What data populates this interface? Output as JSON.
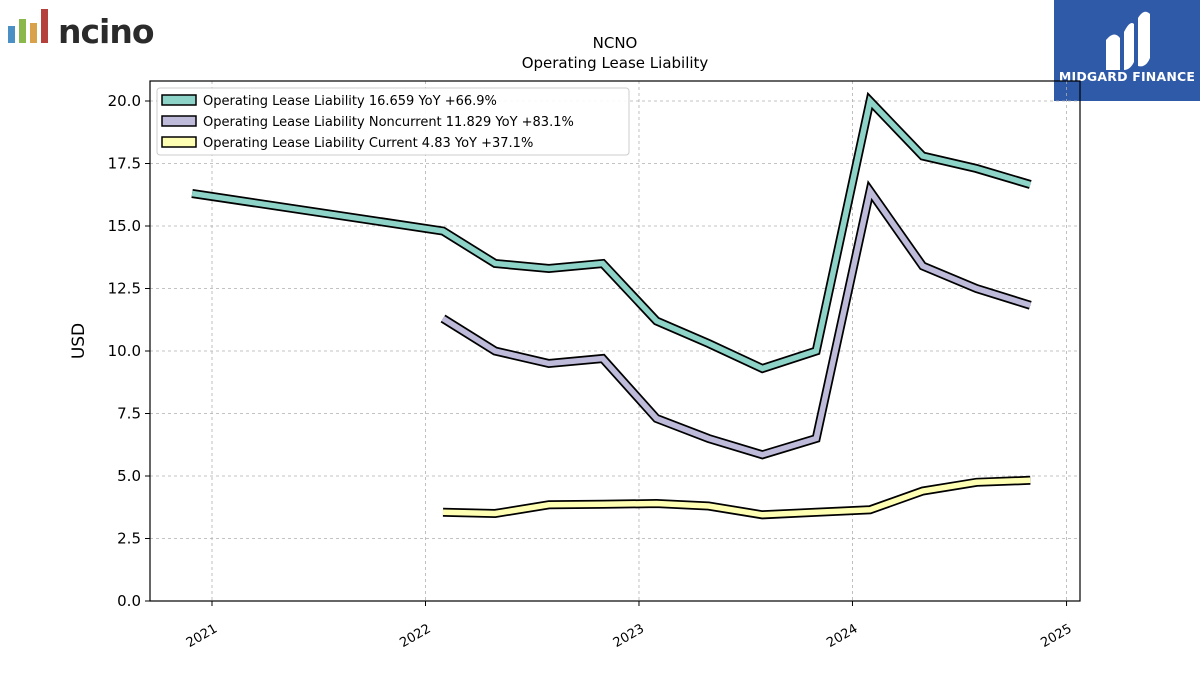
{
  "logos": {
    "left": {
      "text": "ncino",
      "bar_colors": [
        "#4a90c4",
        "#8bb84a",
        "#d9a24a",
        "#b5413c"
      ]
    },
    "right": {
      "text": "MIDGARD FINANCE",
      "background": "#2f5aa8"
    }
  },
  "chart_data": {
    "type": "line",
    "title": "NCNO",
    "subtitle": "Operating Lease Liability",
    "ylabel": "USD",
    "xlabel": "",
    "ylim": [
      0,
      20.8
    ],
    "xlim": [
      "2020-09-17",
      "2025-01-24"
    ],
    "yticks": [
      "0.0",
      "2.5",
      "5.0",
      "7.5",
      "10.0",
      "12.5",
      "15.0",
      "17.5",
      "20.0"
    ],
    "xticks": [
      "2021",
      "2022",
      "2023",
      "2024",
      "2025"
    ],
    "grid": true,
    "legend_position": "top-left",
    "series": [
      {
        "name": "Operating Lease Liability  16.659 YoY +66.9%",
        "color": "#8dd3c7",
        "points": [
          [
            "2020-11-28",
            16.3
          ],
          [
            "2022-01-31",
            14.8
          ],
          [
            "2022-04-30",
            13.5
          ],
          [
            "2022-07-31",
            13.3
          ],
          [
            "2022-10-31",
            13.5
          ],
          [
            "2023-01-31",
            11.2
          ],
          [
            "2023-04-30",
            10.3
          ],
          [
            "2023-07-31",
            9.3
          ],
          [
            "2023-10-31",
            10.0
          ],
          [
            "2024-01-31",
            20.0
          ],
          [
            "2024-04-30",
            17.8
          ],
          [
            "2024-07-31",
            17.3
          ],
          [
            "2024-10-31",
            16.659
          ]
        ]
      },
      {
        "name": "Operating Lease Liability Noncurrent  11.829 YoY +83.1%",
        "color": "#bebada",
        "points": [
          [
            "2022-01-31",
            11.3
          ],
          [
            "2022-04-30",
            10.0
          ],
          [
            "2022-07-31",
            9.5
          ],
          [
            "2022-10-31",
            9.7
          ],
          [
            "2023-01-31",
            7.3
          ],
          [
            "2023-04-30",
            6.5
          ],
          [
            "2023-07-31",
            5.85
          ],
          [
            "2023-10-31",
            6.5
          ],
          [
            "2024-01-31",
            16.4
          ],
          [
            "2024-04-30",
            13.4
          ],
          [
            "2024-07-31",
            12.5
          ],
          [
            "2024-10-31",
            11.829
          ]
        ]
      },
      {
        "name": "Operating Lease Liability Current  4.83 YoY +37.1%",
        "color": "#ffffb3",
        "points": [
          [
            "2022-01-31",
            3.55
          ],
          [
            "2022-04-30",
            3.5
          ],
          [
            "2022-07-31",
            3.85
          ],
          [
            "2022-10-31",
            3.87
          ],
          [
            "2023-01-31",
            3.9
          ],
          [
            "2023-04-30",
            3.8
          ],
          [
            "2023-07-31",
            3.45
          ],
          [
            "2023-10-31",
            3.55
          ],
          [
            "2024-01-31",
            3.65
          ],
          [
            "2024-04-30",
            4.4
          ],
          [
            "2024-07-31",
            4.75
          ],
          [
            "2024-10-31",
            4.83
          ]
        ]
      }
    ]
  }
}
